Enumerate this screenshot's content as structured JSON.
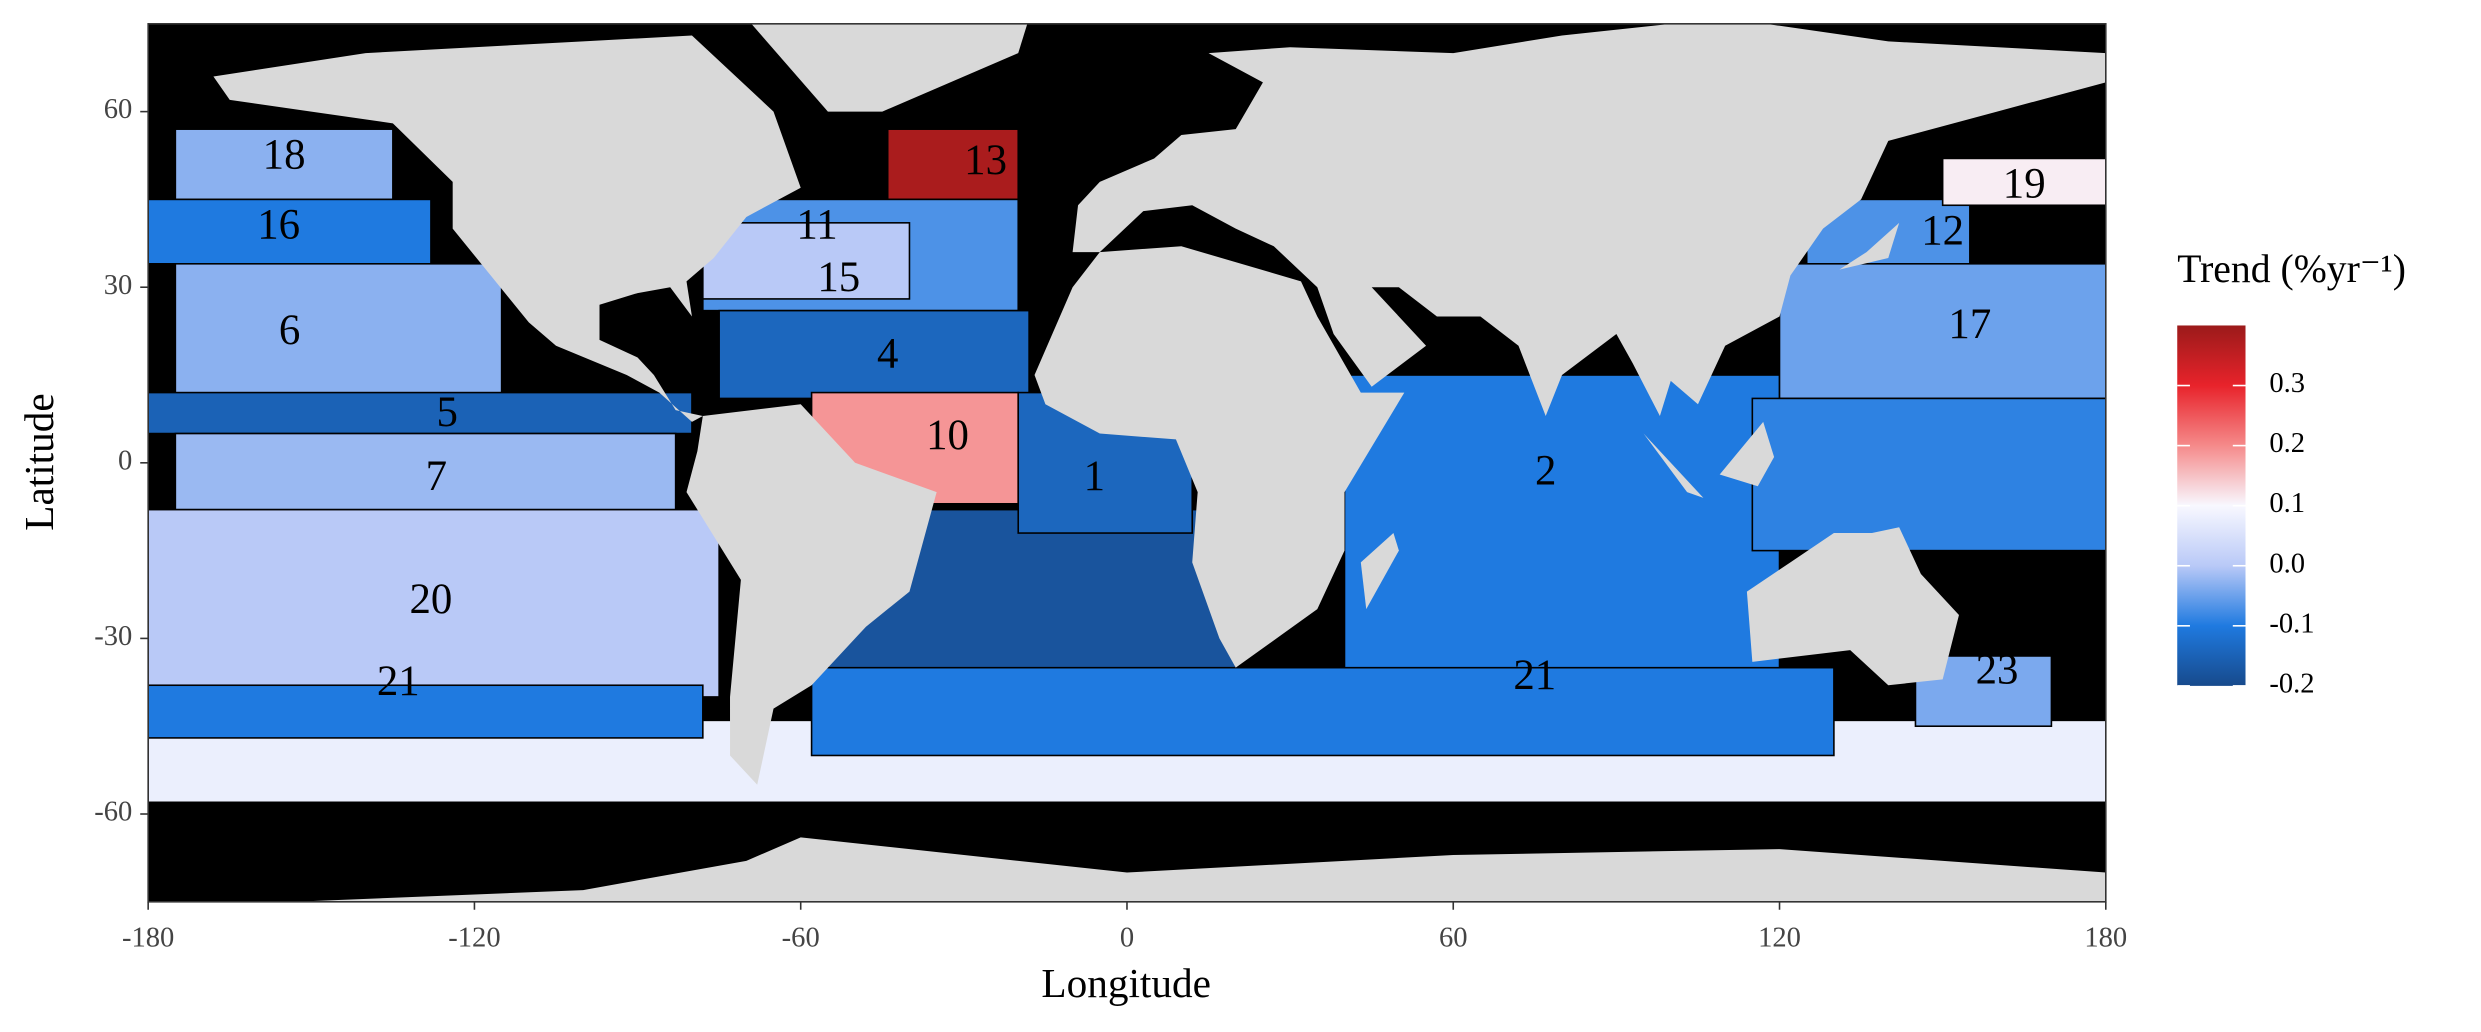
{
  "chart_data": {
    "type": "map",
    "xlabel": "Longitude",
    "ylabel": "Latitude",
    "xlim": [
      -180,
      180
    ],
    "ylim": [
      -75,
      75
    ],
    "xticks": [
      -180,
      -120,
      -60,
      0,
      60,
      120,
      180
    ],
    "yticks": [
      -60,
      -30,
      0,
      30,
      60
    ],
    "colorbar": {
      "title": "Trend (%yr⁻¹)",
      "lim": [
        -0.2,
        0.4
      ],
      "ticks": [
        -0.2,
        -0.1,
        {
          "value": 0,
          "label": "0.0"
        },
        0.1,
        0.2,
        0.3
      ],
      "colors": [
        "#174a8c",
        "#1f7ae0",
        "#b9c9f7",
        "#f8f8ff",
        "#f58a8a",
        "#e8232b",
        "#9b1a1a"
      ]
    },
    "regions": [
      {
        "label": null,
        "trend": 0.08
      },
      {
        "label": "13",
        "trend": 0.38
      },
      {
        "label": "18",
        "trend": -0.03
      },
      {
        "label": "16",
        "trend": -0.1
      },
      {
        "label": "6",
        "trend": -0.03
      },
      {
        "label": "5",
        "trend": -0.15
      },
      {
        "label": "7",
        "trend": -0.02
      },
      {
        "label": "20",
        "trend": 0.0
      },
      {
        "label": "21",
        "trend": -0.1
      },
      {
        "label": "11",
        "trend": -0.07
      },
      {
        "label": "15",
        "trend": 0.0
      },
      {
        "label": "4",
        "trend": -0.14
      },
      {
        "label": null,
        "trend": -0.18
      },
      {
        "label": "10",
        "trend": 0.19
      },
      {
        "label": "1",
        "trend": -0.14
      },
      {
        "label": "21",
        "trend": -0.1
      },
      {
        "label": "2",
        "trend": -0.1
      },
      {
        "label": "12",
        "trend": -0.07
      },
      {
        "label": "19",
        "trend": 0.11
      },
      {
        "label": "17",
        "trend": -0.05
      },
      {
        "label": null,
        "trend": -0.09
      },
      {
        "label": "23",
        "trend": -0.04
      }
    ]
  }
}
